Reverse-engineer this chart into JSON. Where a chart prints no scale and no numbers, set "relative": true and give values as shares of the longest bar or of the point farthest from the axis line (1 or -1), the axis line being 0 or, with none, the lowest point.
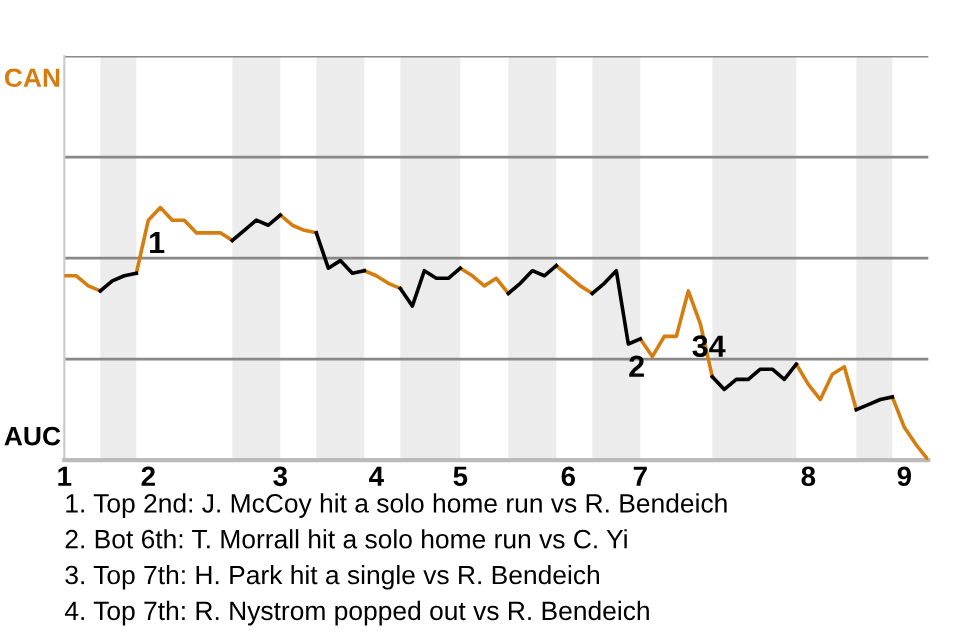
{
  "chart_data": {
    "type": "line",
    "relative": true,
    "categories": [
      "1",
      null,
      null,
      null,
      null,
      null,
      null,
      "2",
      null,
      null,
      null,
      null,
      null,
      null,
      null,
      null,
      null,
      null,
      "3",
      null,
      null,
      null,
      null,
      null,
      null,
      null,
      "4",
      null,
      null,
      null,
      null,
      null,
      null,
      "5",
      null,
      null,
      null,
      null,
      null,
      null,
      null,
      null,
      "6",
      null,
      null,
      null,
      null,
      null,
      "7",
      null,
      null,
      null,
      null,
      null,
      null,
      null,
      null,
      null,
      null,
      null,
      null,
      null,
      "8",
      null,
      null,
      null,
      null,
      null,
      null,
      null,
      "9",
      null,
      null
    ],
    "ref_lines": [
      {
        "axis": "y",
        "value": 0.4,
        "color": "#888888"
      },
      {
        "axis": "y",
        "value": 0.8,
        "color": "#888888"
      },
      {
        "axis": "y",
        "value": 1.2,
        "color": "#888888"
      },
      {
        "axis": "y",
        "value": 1.6,
        "color": "#888888"
      }
    ],
    "legend": false,
    "marker": "none",
    "line_style": "solid",
    "series": [
      {
        "name": "CAN",
        "color": "#d67d0f",
        "values": [
          0.73,
          0.73,
          0.69,
          0.67,
          null,
          null,
          0.74,
          0.95,
          1,
          0.95,
          0.95,
          0.9,
          0.9,
          0.9,
          0.87,
          null,
          null,
          null,
          0.97,
          0.93,
          0.91,
          0.9,
          null,
          null,
          null,
          0.75,
          0.73,
          0.7,
          0.68,
          null,
          null,
          null,
          null,
          0.76,
          0.73,
          0.69,
          0.72,
          0.66,
          null,
          null,
          null,
          0.77,
          0.73,
          0.69,
          0.66,
          null,
          null,
          null,
          0.48,
          0.41,
          0.49,
          0.49,
          0.67,
          0.54,
          0.33,
          null,
          null,
          null,
          null,
          null,
          null,
          0.38,
          0.3,
          0.24,
          0.34,
          0.37,
          0.2,
          null,
          null,
          0.25,
          0.13,
          0.06,
          0
        ]
      },
      {
        "name": "AUC",
        "color": "#000000",
        "values": [
          null,
          null,
          null,
          0.67,
          0.71,
          0.73,
          0.74,
          null,
          null,
          null,
          null,
          null,
          null,
          null,
          0.87,
          0.91,
          0.95,
          0.93,
          0.97,
          null,
          null,
          0.9,
          0.76,
          0.79,
          0.74,
          0.75,
          null,
          null,
          0.68,
          0.61,
          0.75,
          0.72,
          0.72,
          0.76,
          null,
          null,
          null,
          0.66,
          0.7,
          0.75,
          0.73,
          0.77,
          null,
          null,
          0.66,
          0.7,
          0.75,
          0.46,
          0.48,
          null,
          null,
          null,
          null,
          null,
          0.33,
          0.28,
          0.32,
          0.32,
          0.36,
          0.36,
          0.32,
          0.38,
          null,
          null,
          null,
          null,
          0.2,
          0.22,
          0.24,
          0.25,
          null,
          null,
          null
        ]
      }
    ],
    "annotations": [
      {
        "text": "1",
        "x": "2",
        "y": 0.95
      },
      {
        "text": "2",
        "y": 0.46
      },
      {
        "text": "34",
        "y": 0.54
      },
      "1. Top 2nd: J. McCoy hit a solo home run vs R. Bendeich",
      "2. Bot 6th: T. Morrall hit a solo home run vs C. Yi",
      "3. Top 7th: H. Park hit a single vs R. Bendeich",
      "4. Top 7th: R. Nystrom popped out vs R. Bendeich"
    ]
  }
}
